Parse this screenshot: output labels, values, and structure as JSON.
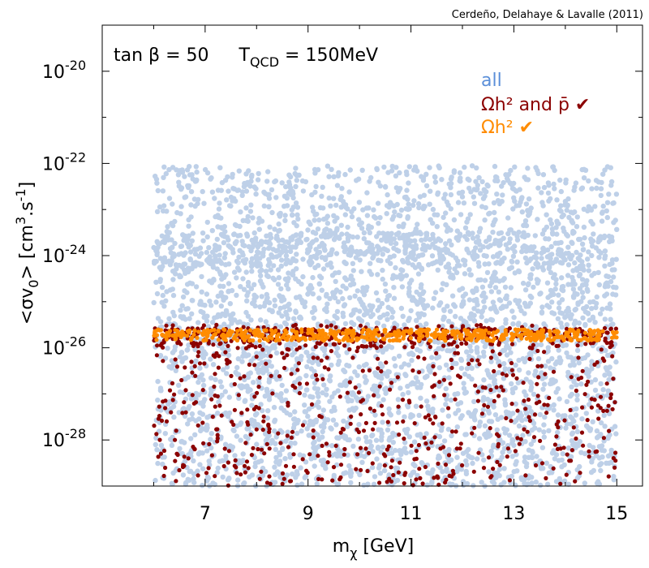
{
  "chart_data": {
    "type": "scatter",
    "credit": "Cerdeño, Delahaye & Lavalle (2011)",
    "annotation": {
      "tanb_prefix": "tan β = 50",
      "tqcd_main": "T",
      "tqcd_sub": "QCD",
      "tqcd_rest": " = 150MeV"
    },
    "xlabel": {
      "main": "m",
      "sub": "χ",
      "rest": " [GeV]"
    },
    "ylabel": {
      "p1": "<σv",
      "sub0": "0",
      "p2": "> [cm",
      "sup3": "3",
      "p3": ".s",
      "supm1": "-1",
      "p4": "]"
    },
    "xlim": [
      5.0,
      15.5
    ],
    "ylim_log10": [
      -29.0,
      -19.0
    ],
    "x_ticks": [
      {
        "value": 7,
        "label": "7"
      },
      {
        "value": 9,
        "label": "9"
      },
      {
        "value": 11,
        "label": "11"
      },
      {
        "value": 13,
        "label": "13"
      },
      {
        "value": 15,
        "label": "15"
      }
    ],
    "y_ticks": [
      {
        "value": -28,
        "base": "10",
        "exp": "-28"
      },
      {
        "value": -26,
        "base": "10",
        "exp": "-26"
      },
      {
        "value": -24,
        "base": "10",
        "exp": "-24"
      },
      {
        "value": -22,
        "base": "10",
        "exp": "-22"
      },
      {
        "value": -20,
        "base": "10",
        "exp": "-20"
      }
    ],
    "y_scale": "log",
    "grid": false,
    "legend_placement": "top-right",
    "series": [
      {
        "name": "all",
        "color": "#bed0e8",
        "x_range": [
          6.0,
          15.0
        ],
        "log10y_range": [
          -29.0,
          -22.05
        ],
        "description_density": "dense"
      },
      {
        "name": "Ωh² and p̄ ✔",
        "color": "#8b0000",
        "x_range": [
          6.0,
          15.0
        ],
        "log10y_range": [
          -29.0,
          -25.5
        ]
      },
      {
        "name": "Ωh² ✔",
        "color": "#ff8c00",
        "x_range": [
          6.0,
          15.0
        ],
        "log10y_range": [
          -25.85,
          -25.6
        ]
      }
    ]
  }
}
